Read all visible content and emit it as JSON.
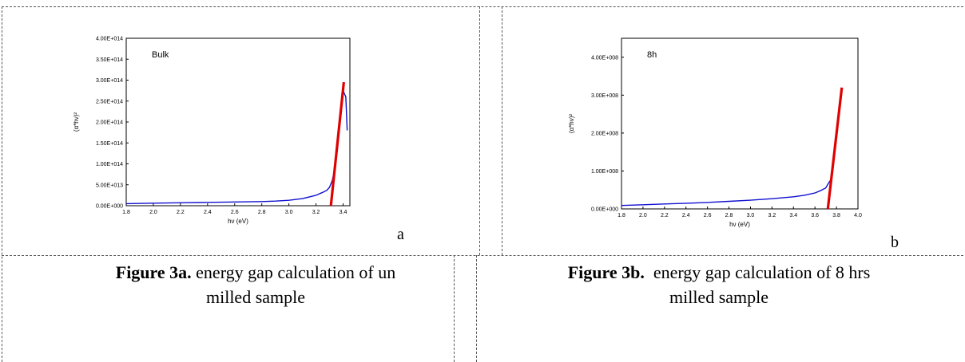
{
  "chart_data": [
    {
      "type": "line",
      "annotation": "Bulk",
      "xlabel": "hν (eV)",
      "ylabel": "(α*hν)²",
      "xlim": [
        1.8,
        3.45
      ],
      "ylim": [
        0,
        400000000000000.0
      ],
      "xticks": [
        "1.8",
        "2.0",
        "2.2",
        "2.4",
        "2.6",
        "2.8",
        "3.0",
        "3.2",
        "3.4"
      ],
      "yticks": [
        "0.00E+000",
        "5.00E+013",
        "1.00E+014",
        "1.50E+014",
        "2.00E+014",
        "2.50E+014",
        "3.00E+014",
        "3.50E+014",
        "4.00E+014"
      ],
      "series": [
        {
          "color": "#1010d0",
          "x": [
            1.8,
            2.0,
            2.2,
            2.4,
            2.6,
            2.8,
            2.9,
            3.0,
            3.1,
            3.2,
            3.25,
            3.28,
            3.3,
            3.32,
            3.34,
            3.36,
            3.38,
            3.4,
            3.42,
            3.43
          ],
          "y": [
            5000000000000.0,
            6000000000000.0,
            7000000000000.0,
            8000000000000.0,
            9000000000000.0,
            10000000000000.0,
            11000000000000.0,
            13000000000000.0,
            17000000000000.0,
            25000000000000.0,
            32000000000000.0,
            37000000000000.0,
            44000000000000.0,
            60000000000000.0,
            90000000000000.0,
            140000000000000.0,
            210000000000000.0,
            275000000000000.0,
            260000000000000.0,
            180000000000000.0
          ]
        },
        {
          "color": "#e00000",
          "x": [
            3.31,
            3.405
          ],
          "y": [
            0.0,
            295000000000000.0
          ]
        }
      ]
    },
    {
      "type": "line",
      "annotation": "8h",
      "xlabel": "hν (eV)",
      "ylabel": "(α*hν)²",
      "xlim": [
        1.8,
        4.0
      ],
      "ylim": [
        0,
        450000000.0
      ],
      "xticks": [
        "1.8",
        "2.0",
        "2.2",
        "2.4",
        "2.6",
        "2.8",
        "3.0",
        "3.2",
        "3.4",
        "3.6",
        "3.8",
        "4.0"
      ],
      "yticks": [
        "0.00E+000",
        "1.00E+008",
        "2.00E+008",
        "3.00E+008",
        "4.00E+008"
      ],
      "ytick_values": [
        0,
        100000000.0,
        200000000.0,
        300000000.0,
        400000000.0
      ],
      "series": [
        {
          "color": "#1010d0",
          "x": [
            1.8,
            2.0,
            2.2,
            2.4,
            2.6,
            2.8,
            3.0,
            3.2,
            3.4,
            3.5,
            3.6,
            3.65,
            3.7,
            3.72,
            3.74
          ],
          "y": [
            9000000.0,
            11000000.0,
            13000000.0,
            15000000.0,
            17000000.0,
            20000000.0,
            23000000.0,
            27000000.0,
            32000000.0,
            36000000.0,
            42000000.0,
            48000000.0,
            55000000.0,
            65000000.0,
            74000000.0
          ]
        },
        {
          "color": "#e00000",
          "x": [
            3.72,
            3.85
          ],
          "y": [
            0.0,
            320000000.0
          ]
        }
      ]
    }
  ],
  "letters": [
    "a",
    "b"
  ],
  "captions": [
    {
      "bold": "Figure 3a.",
      "line1": " energy gap calculation of un",
      "line2": "milled sample"
    },
    {
      "bold": "Figure 3b.",
      "line1": "  energy gap calculation of 8 hrs",
      "line2": "milled sample"
    }
  ]
}
